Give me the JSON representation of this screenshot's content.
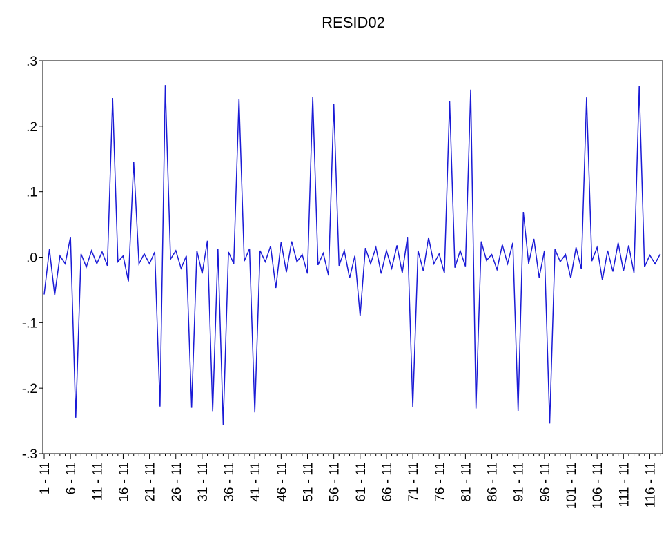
{
  "chart_data": {
    "type": "line",
    "title": "RESID02",
    "categories": [
      "1 - 11",
      null,
      null,
      null,
      null,
      "6 - 11",
      null,
      null,
      null,
      null,
      "11 - 11",
      null,
      null,
      null,
      null,
      "16 - 11",
      null,
      null,
      null,
      null,
      "21 - 11",
      null,
      null,
      null,
      null,
      "26 - 11",
      null,
      null,
      null,
      null,
      "31 - 11",
      null,
      null,
      null,
      null,
      "36 - 11",
      null,
      null,
      null,
      null,
      "41 - 11",
      null,
      null,
      null,
      null,
      "46 - 11",
      null,
      null,
      null,
      null,
      "51 - 11",
      null,
      null,
      null,
      null,
      "56 - 11",
      null,
      null,
      null,
      null,
      "61 - 11",
      null,
      null,
      null,
      null,
      "66 - 11",
      null,
      null,
      null,
      null,
      "71 - 11",
      null,
      null,
      null,
      null,
      "76 - 11",
      null,
      null,
      null,
      null,
      "81 - 11",
      null,
      null,
      null,
      null,
      "86 - 11",
      null,
      null,
      null,
      null,
      "91 - 11",
      null,
      null,
      null,
      null,
      "96 - 11",
      null,
      null,
      null,
      null,
      "101 - 11",
      null,
      null,
      null,
      null,
      "106 - 11",
      null,
      null,
      null,
      null,
      "111 - 11",
      null,
      null,
      null,
      null,
      "116 - 11",
      null,
      null
    ],
    "series": [
      {
        "name": "RESID02",
        "color": "#1a1ad6",
        "values": [
          -0.057,
          0.012,
          -0.058,
          0.002,
          -0.01,
          0.031,
          -0.245,
          0.005,
          -0.015,
          0.01,
          -0.01,
          0.008,
          -0.013,
          0.243,
          -0.007,
          0.002,
          -0.037,
          0.146,
          -0.01,
          0.005,
          -0.01,
          0.008,
          -0.228,
          0.263,
          -0.003,
          0.01,
          -0.017,
          0.002,
          -0.23,
          0.01,
          -0.025,
          0.025,
          -0.236,
          0.013,
          -0.256,
          0.008,
          -0.01,
          0.242,
          -0.006,
          0.013,
          -0.237,
          0.01,
          -0.007,
          0.017,
          -0.047,
          0.023,
          -0.023,
          0.024,
          -0.007,
          0.004,
          -0.025,
          0.245,
          -0.012,
          0.006,
          -0.028,
          0.234,
          -0.013,
          0.01,
          -0.032,
          0.002,
          -0.09,
          0.014,
          -0.01,
          0.015,
          -0.025,
          0.01,
          -0.017,
          0.018,
          -0.024,
          0.031,
          -0.229,
          0.01,
          -0.021,
          0.03,
          -0.01,
          0.005,
          -0.024,
          0.238,
          -0.016,
          0.01,
          -0.014,
          0.256,
          -0.231,
          0.024,
          -0.005,
          0.004,
          -0.019,
          0.019,
          -0.01,
          0.022,
          -0.235,
          0.069,
          -0.01,
          0.028,
          -0.031,
          0.01,
          -0.254,
          0.012,
          -0.007,
          0.004,
          -0.032,
          0.015,
          -0.018,
          0.244,
          -0.006,
          0.015,
          -0.035,
          0.01,
          -0.022,
          0.022,
          -0.021,
          0.018,
          -0.024,
          0.261,
          -0.015,
          0.003,
          -0.01,
          0.005
        ]
      }
    ],
    "ylim": [
      -0.3,
      0.3
    ],
    "yticks": [
      {
        "value": -0.3,
        "label": "-.3"
      },
      {
        "value": -0.2,
        "label": "-.2"
      },
      {
        "value": -0.1,
        "label": "-.1"
      },
      {
        "value": 0,
        "label": ".0"
      },
      {
        "value": 0.1,
        "label": ".1"
      },
      {
        "value": 0.2,
        "label": ".2"
      },
      {
        "value": 0.3,
        "label": ".3"
      }
    ]
  }
}
